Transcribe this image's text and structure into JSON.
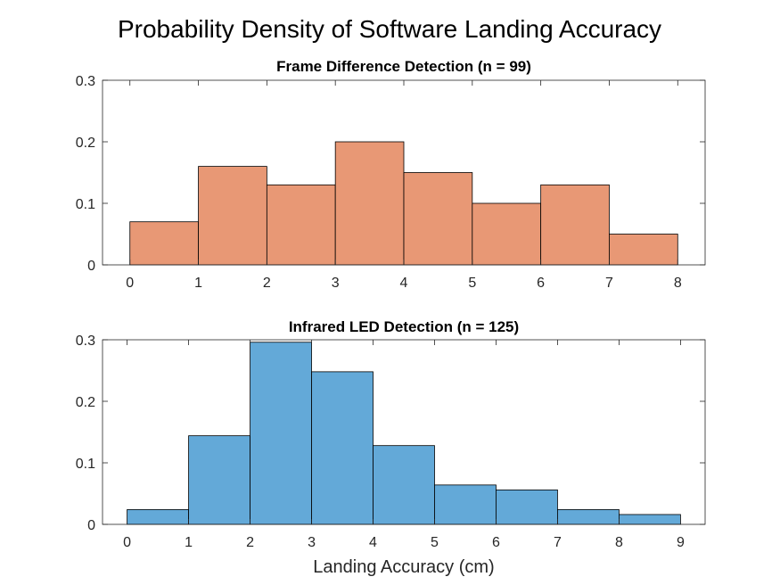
{
  "figure": {
    "title": "Probability Density of Software Landing Accuracy"
  },
  "chart_data": [
    {
      "type": "bar",
      "title": "Frame Difference Detection (n = 99)",
      "xlabel": "",
      "ylabel": "",
      "bin_edges": [
        0,
        1,
        2,
        3,
        4,
        5,
        6,
        7,
        8
      ],
      "values": [
        0.07,
        0.16,
        0.13,
        0.2,
        0.15,
        0.1,
        0.13,
        0.05
      ],
      "xlim": [
        -0.4,
        8.4
      ],
      "ylim": [
        0,
        0.3
      ],
      "xticks": [
        "0",
        "1",
        "2",
        "3",
        "4",
        "5",
        "6",
        "7",
        "8"
      ],
      "yticks": [
        "0",
        "0.1",
        "0.2",
        "0.3"
      ],
      "color": "#E89875",
      "grid": false
    },
    {
      "type": "bar",
      "title": "Infrared LED Detection (n = 125)",
      "xlabel": "Landing Accuracy (cm)",
      "ylabel": "",
      "bin_edges": [
        0,
        1,
        2,
        3,
        4,
        5,
        6,
        7,
        8,
        9
      ],
      "values": [
        0.024,
        0.144,
        0.296,
        0.248,
        0.128,
        0.064,
        0.056,
        0.024,
        0.016
      ],
      "xlim": [
        -0.4,
        9.4
      ],
      "ylim": [
        0,
        0.3
      ],
      "xticks": [
        "0",
        "1",
        "2",
        "3",
        "4",
        "5",
        "6",
        "7",
        "8",
        "9"
      ],
      "yticks": [
        "0",
        "0.1",
        "0.2",
        "0.3"
      ],
      "color": "#63A9D8",
      "grid": false
    }
  ]
}
